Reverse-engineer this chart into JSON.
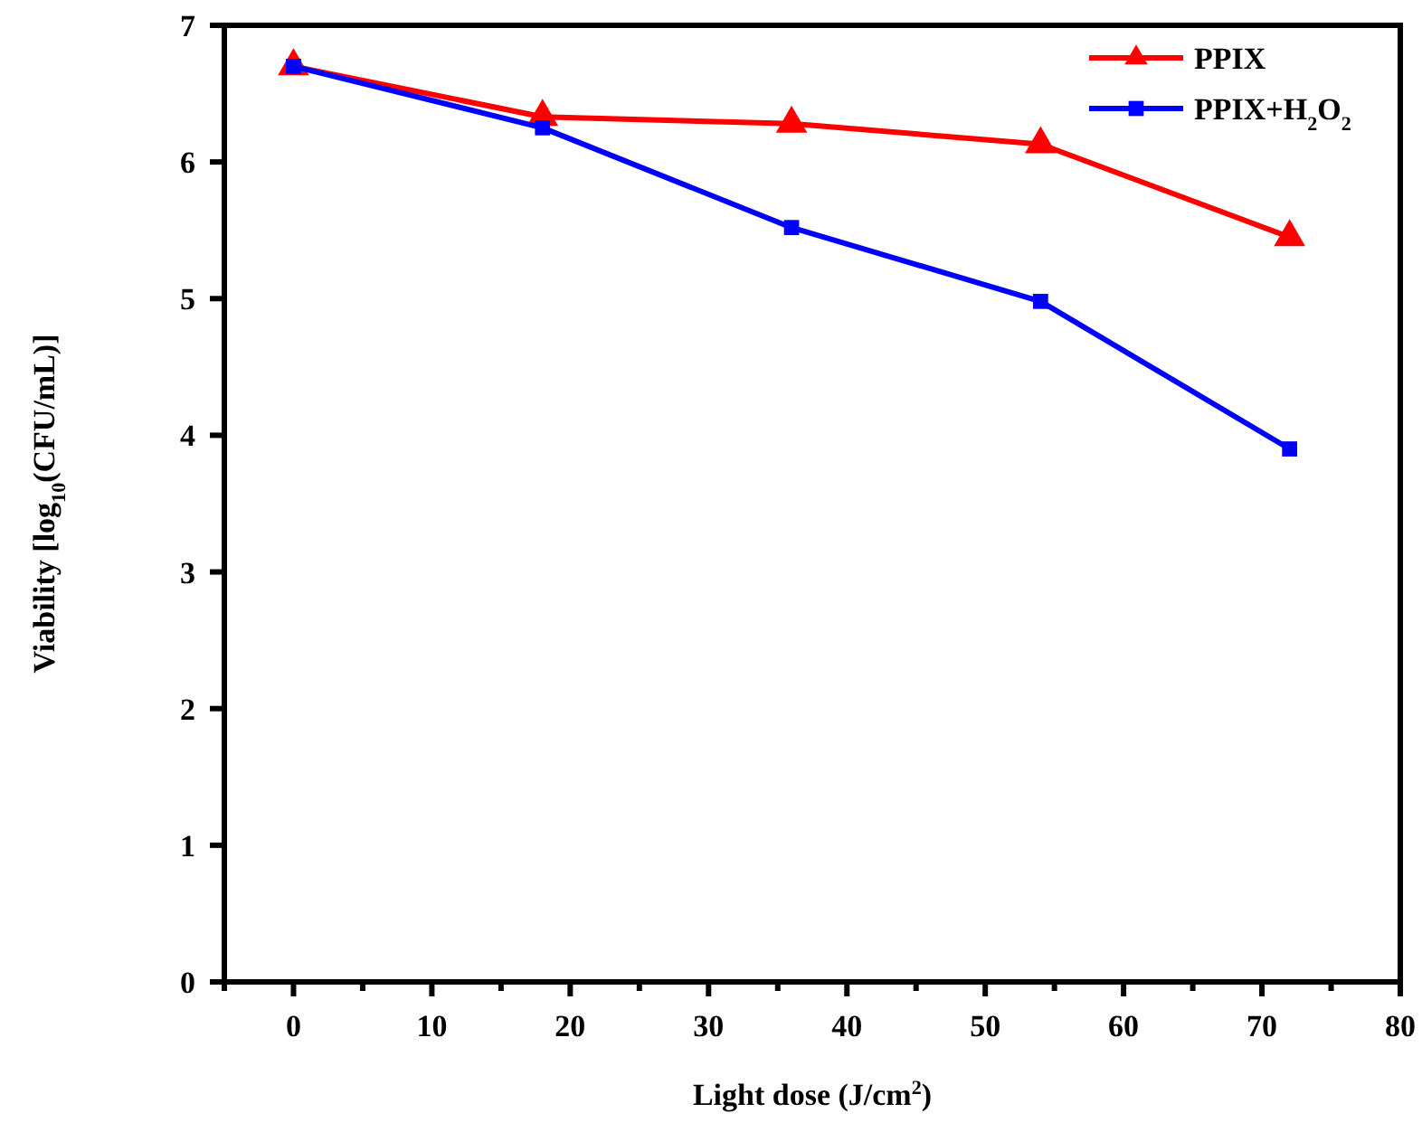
{
  "chart_data": {
    "type": "line",
    "xlabel": "Light dose (J/cm$^{2}$)",
    "ylabel": "Viability [log$_{10}$(CFU/mL)]",
    "x": [
      0,
      18,
      36,
      54,
      72
    ],
    "series": [
      {
        "name": "PPIX",
        "color": "#ff0000",
        "marker": "triangle",
        "values": [
          6.7,
          6.33,
          6.28,
          6.13,
          5.45
        ]
      },
      {
        "name": "PPIX+H$_{2}$O$_{2}$",
        "color": "#0000ff",
        "marker": "square",
        "values": [
          6.7,
          6.25,
          5.52,
          4.98,
          3.9
        ]
      }
    ],
    "xlim": [
      -5,
      80
    ],
    "ylim": [
      0,
      7
    ],
    "xticks": [
      {
        "value": -5,
        "label": null
      },
      0,
      {
        "value": 5,
        "label": null
      },
      10,
      {
        "value": 15,
        "label": null
      },
      20,
      {
        "value": 25,
        "label": null
      },
      30,
      {
        "value": 35,
        "label": null
      },
      40,
      {
        "value": 45,
        "label": null
      },
      50,
      {
        "value": 55,
        "label": null
      },
      60,
      {
        "value": 65,
        "label": null
      },
      70,
      {
        "value": 75,
        "label": null
      },
      80
    ],
    "yticks": [
      0,
      1,
      2,
      3,
      4,
      5,
      6,
      7
    ],
    "grid": false,
    "legend": "top right",
    "line_style": "solid"
  }
}
